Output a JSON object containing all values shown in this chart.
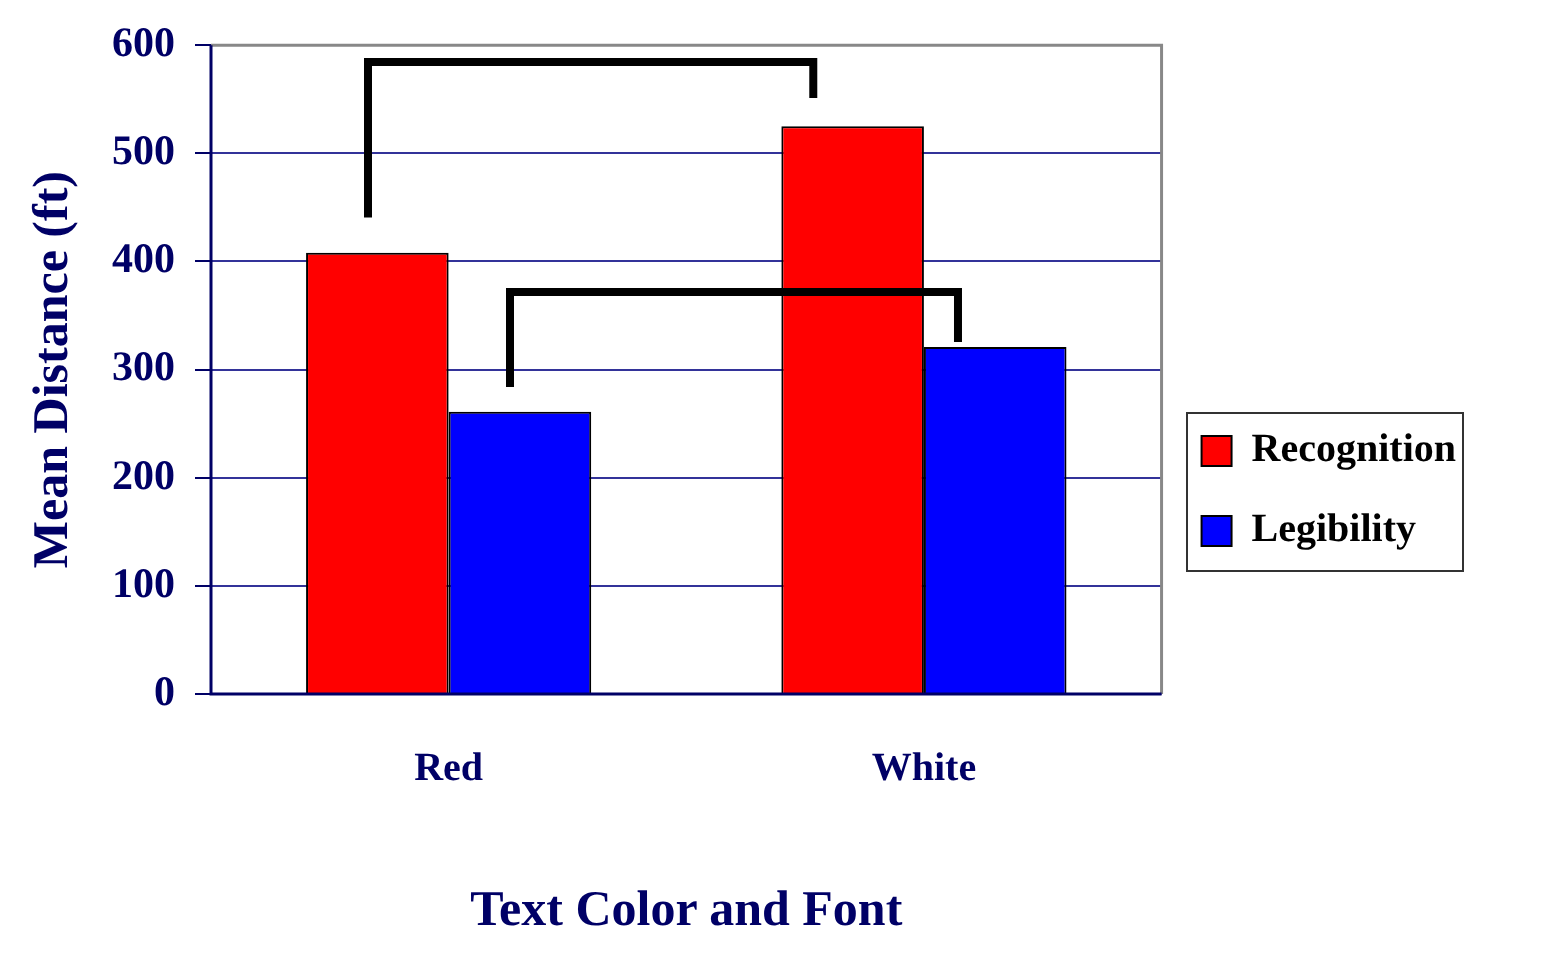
{
  "chart_data": {
    "type": "bar",
    "xlabel": "Text Color and Font",
    "ylabel": "Mean Distance (ft)",
    "categories": [
      "Red",
      "White"
    ],
    "series": [
      {
        "name": "Recognition",
        "color": "#ff0000",
        "values": [
          408,
          525
        ]
      },
      {
        "name": "Legibility",
        "color": "#0000ff",
        "values": [
          261,
          321
        ]
      }
    ],
    "ylim": [
      0,
      600
    ],
    "yticks": [
      0,
      100,
      200,
      300,
      400,
      500,
      600
    ],
    "grid": "y",
    "legend": "right"
  }
}
